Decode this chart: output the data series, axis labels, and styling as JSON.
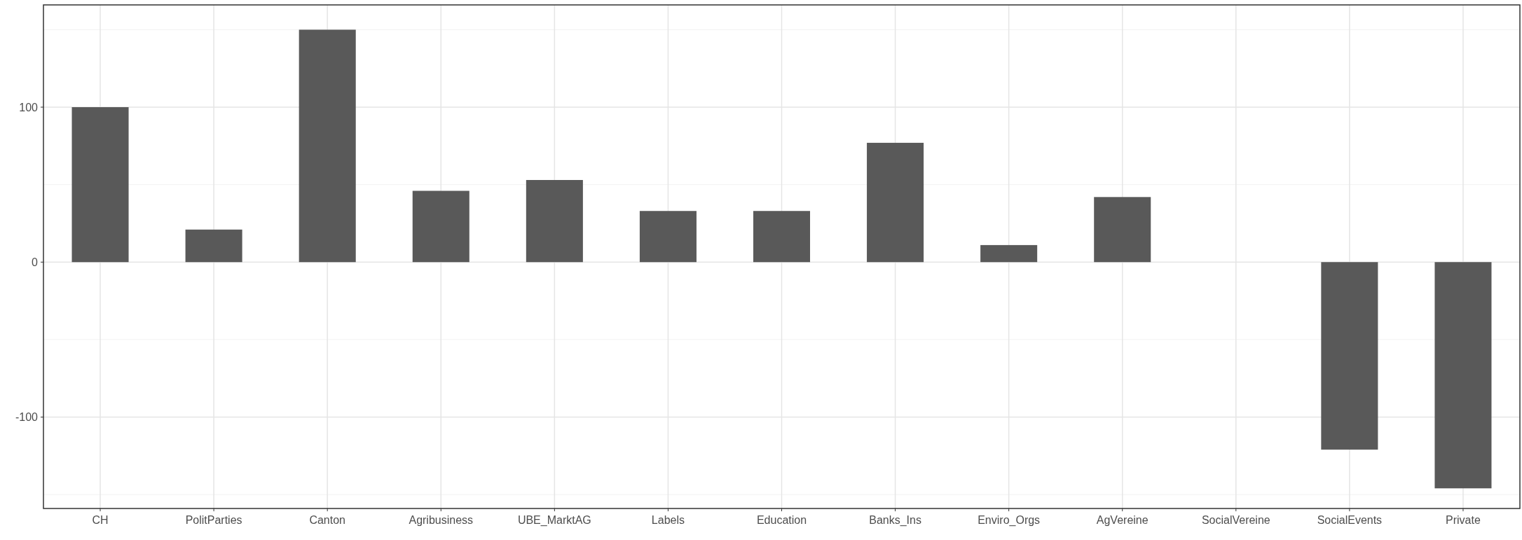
{
  "chart_data": {
    "type": "bar",
    "categories": [
      "CH",
      "PolitParties",
      "Canton",
      "Agribusiness",
      "UBE_MarktAG",
      "Labels",
      "Education",
      "Banks_Ins",
      "Enviro_Orgs",
      "AgVereine",
      "SocialVereine",
      "SocialEvents",
      "Private"
    ],
    "values": [
      100,
      21,
      150,
      46,
      53,
      33,
      33,
      77,
      11,
      42,
      0,
      -121,
      -146
    ],
    "color": "#595959",
    "ylim": [
      -159,
      166
    ],
    "yticks": [
      {
        "value": -150,
        "label": null
      },
      -100,
      {
        "value": -50,
        "label": null
      },
      0,
      {
        "value": 50,
        "label": null
      },
      100,
      {
        "value": 150,
        "label": null
      }
    ],
    "grid": true
  }
}
